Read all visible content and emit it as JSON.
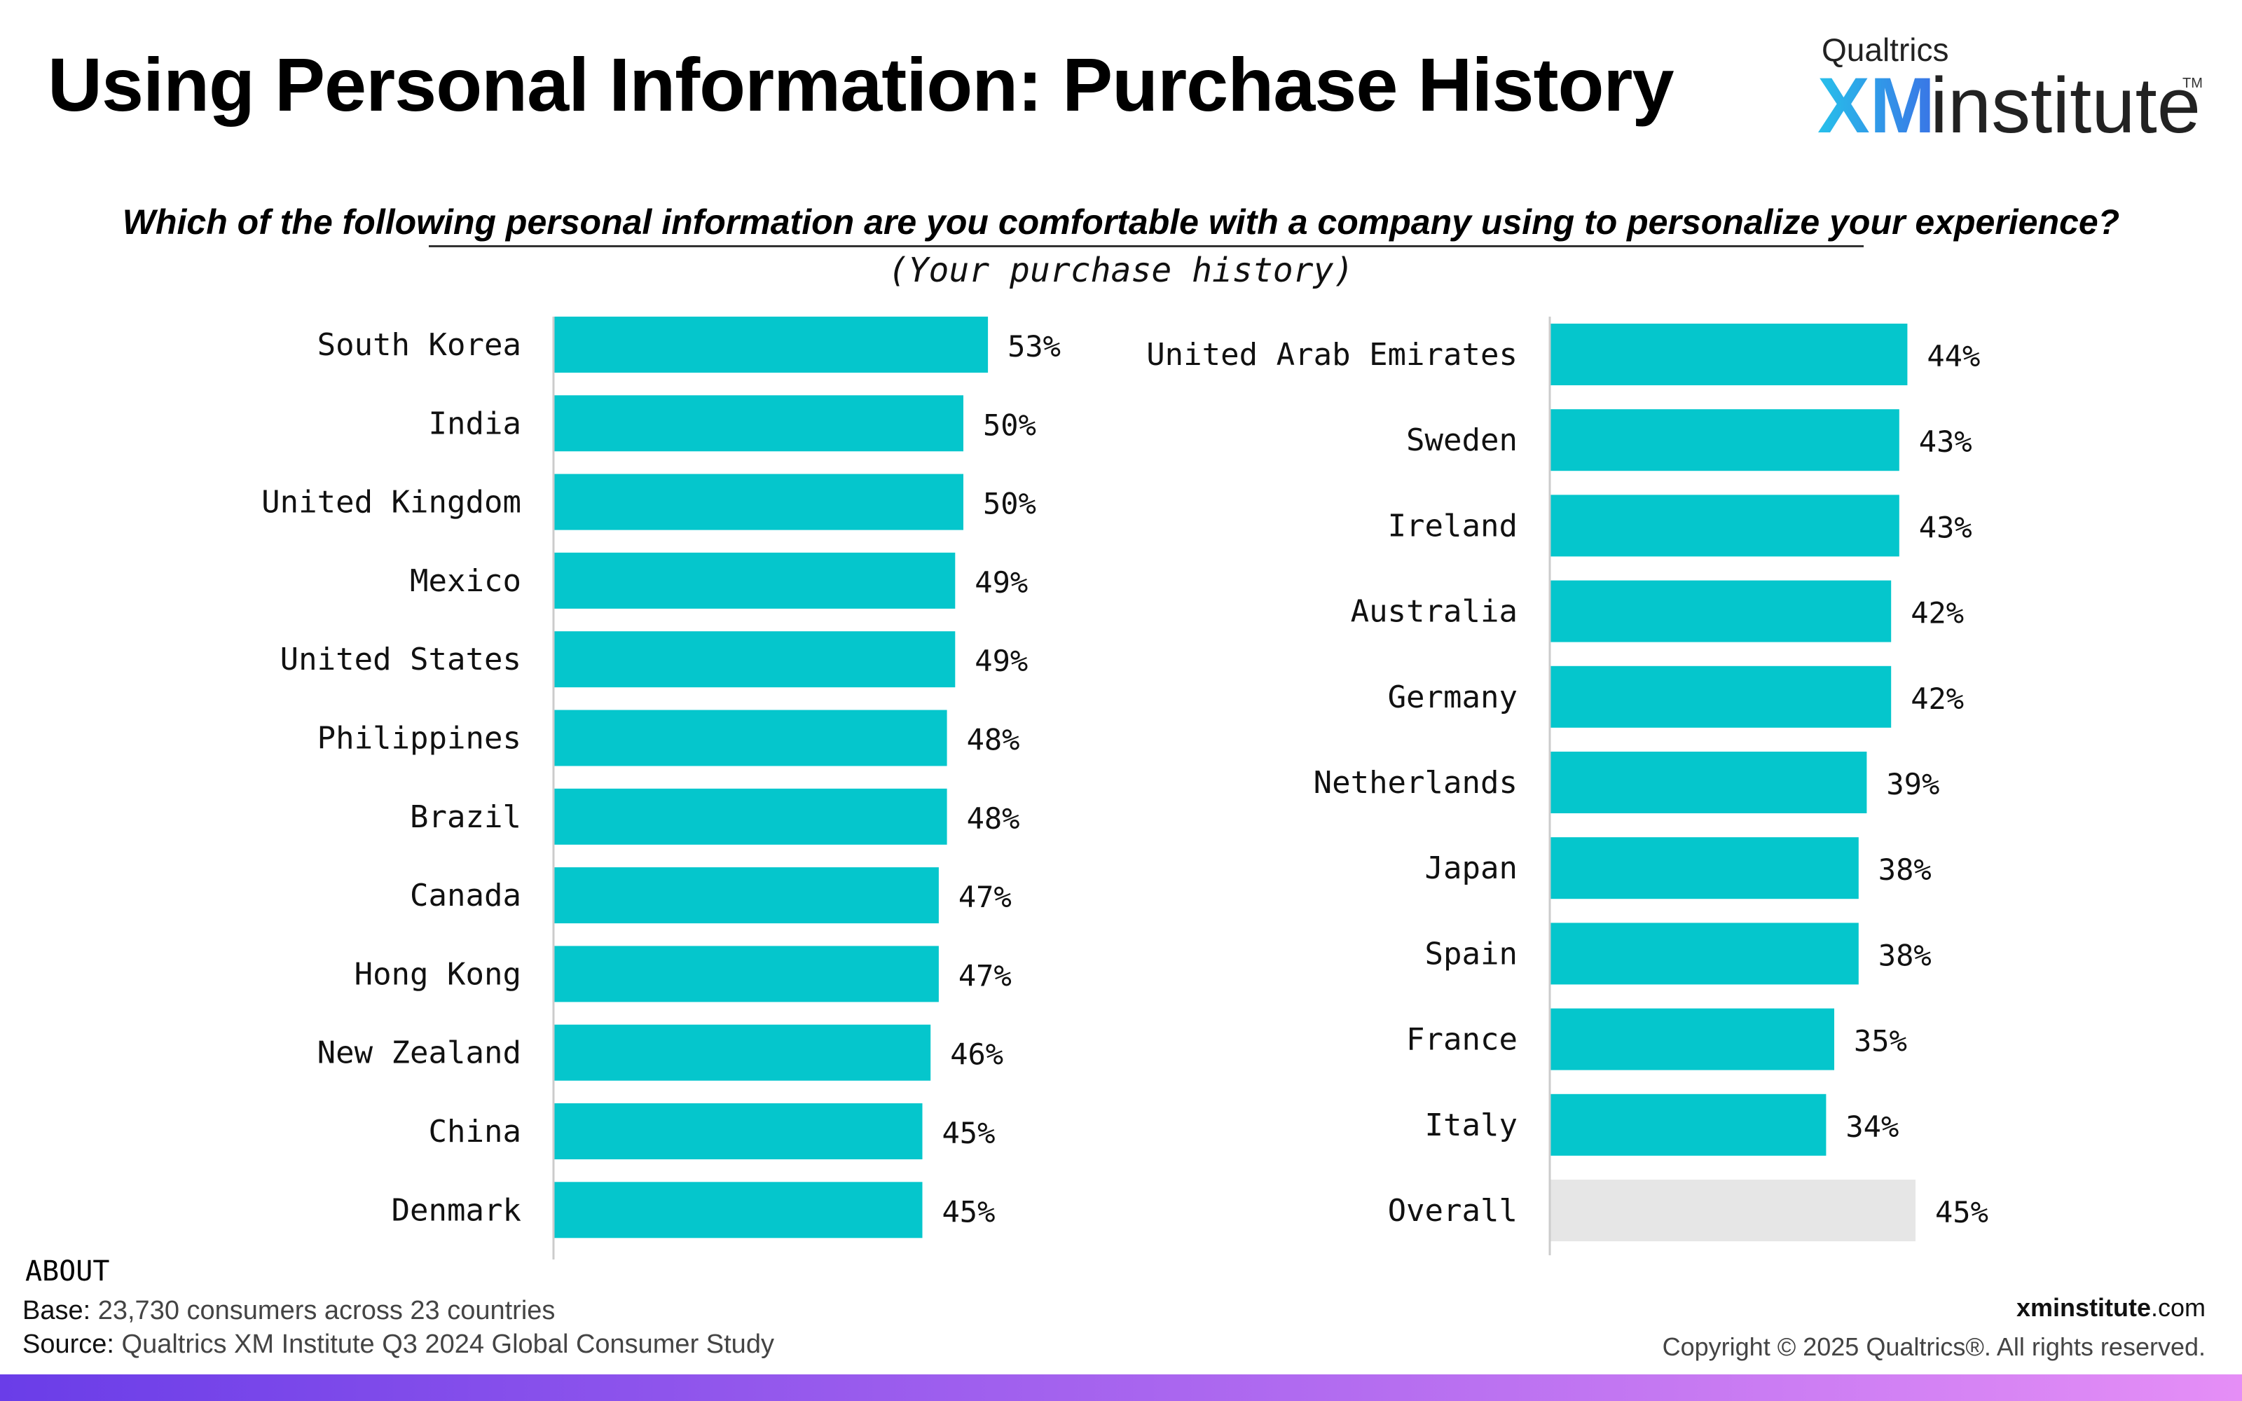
{
  "header": {
    "title": "Using Personal Information: Purchase History",
    "logo_top": "Qualtrics",
    "logo_xm": "XM",
    "logo_institute": "institute",
    "logo_tm": "TM"
  },
  "chart_data": {
    "type": "bar",
    "orientation": "horizontal",
    "title": "Which of the following personal information are you comfortable with a company using to personalize your experience?",
    "subtitle": "(Your purchase history)",
    "value_suffix": "%",
    "panels": [
      {
        "categories": [
          "South Korea",
          "India",
          "United Kingdom",
          "Mexico",
          "United States",
          "Philippines",
          "Brazil",
          "Canada",
          "Hong Kong",
          "New Zealand",
          "China",
          "Denmark"
        ],
        "values": [
          53,
          50,
          50,
          49,
          49,
          48,
          48,
          47,
          47,
          46,
          45,
          45
        ]
      },
      {
        "categories": [
          "United Arab Emirates",
          "Sweden",
          "Ireland",
          "Australia",
          "Germany",
          "Netherlands",
          "Japan",
          "Spain",
          "France",
          "Italy",
          "Overall"
        ],
        "values": [
          44,
          43,
          43,
          42,
          42,
          39,
          38,
          38,
          35,
          34,
          45
        ],
        "highlight": "Overall"
      }
    ],
    "colors": {
      "bar": "#05c6cc",
      "overall": "#e6e6e6",
      "axis": "#cccccc"
    },
    "grid": false,
    "legend": "none"
  },
  "footer": {
    "about": "ABOUT",
    "base_label": "Base:",
    "base_text": " 23,730 consumers across 23 countries",
    "source_label": "Source:",
    "source_text": " Qualtrics XM Institute Q3 2024 Global Consumer Study",
    "site_bold": "xminstitute",
    "site_rest": ".com",
    "copyright": "Copyright © 2025 Qualtrics®. All rights reserved."
  }
}
